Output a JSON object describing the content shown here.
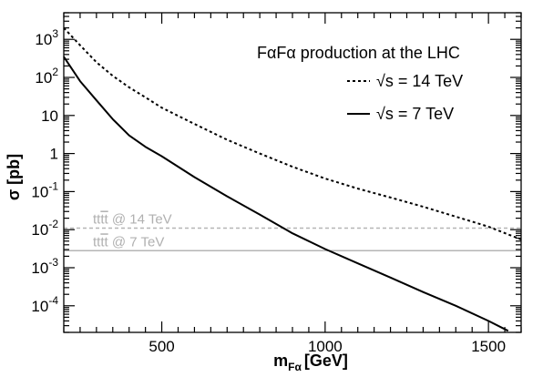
{
  "chart_data": {
    "type": "line",
    "title": "FαFα production at the LHC",
    "xlabel": "m",
    "xlabel_sub": "Fα",
    "xlabel_unit": "[GeV]",
    "ylabel": "σ [pb]",
    "xlim": [
      200,
      1600
    ],
    "ylim": [
      2e-05,
      5000
    ],
    "yscale": "log",
    "grid": false,
    "legend_position": "top-right",
    "x_ticks": [
      500,
      1000,
      1500
    ],
    "x_tick_labels": [
      "500",
      "1000",
      "1500"
    ],
    "y_ticks": [
      0.0001,
      0.001,
      0.01,
      0.1,
      1,
      10,
      100,
      1000
    ],
    "y_tick_labels": [
      {
        "base": "10",
        "exp": "-4"
      },
      {
        "base": "10",
        "exp": "-3"
      },
      {
        "base": "10",
        "exp": "-2"
      },
      {
        "base": "10",
        "exp": "-1"
      },
      {
        "base": "1",
        "exp": ""
      },
      {
        "base": "10",
        "exp": ""
      },
      {
        "base": "10",
        "exp": "2"
      },
      {
        "base": "10",
        "exp": "3"
      }
    ],
    "series": [
      {
        "name": "√s = 14 TeV",
        "style": "dotted",
        "color": "#000000",
        "x": [
          200,
          250,
          300,
          350,
          400,
          450,
          500,
          600,
          700,
          800,
          900,
          1000,
          1100,
          1200,
          1300,
          1400,
          1500,
          1600
        ],
        "y": [
          2000,
          700,
          250,
          110,
          55,
          30,
          16,
          6,
          2.3,
          1,
          0.45,
          0.22,
          0.12,
          0.07,
          0.04,
          0.022,
          0.012,
          0.0055
        ]
      },
      {
        "name": "√s = 7 TeV",
        "style": "solid",
        "color": "#000000",
        "x": [
          200,
          250,
          300,
          350,
          400,
          450,
          500,
          600,
          700,
          800,
          900,
          1000,
          1100,
          1200,
          1300,
          1400,
          1500,
          1560
        ],
        "y": [
          350,
          80,
          25,
          8,
          3,
          1.5,
          0.85,
          0.24,
          0.075,
          0.025,
          0.008,
          0.0031,
          0.0013,
          0.00055,
          0.00023,
          0.0001,
          4e-05,
          2.2e-05
        ]
      }
    ],
    "reference_lines": [
      {
        "label_pre": "tt",
        "label_bar": "tt",
        "label_post": " @ 14 TeV",
        "y": 0.011,
        "style": "dashed",
        "color": "#b5b5b5"
      },
      {
        "label_pre": "tt",
        "label_bar": "tt",
        "label_post": " @ 7 TeV",
        "y": 0.0028,
        "style": "solid",
        "color": "#b5b5b5"
      }
    ]
  }
}
